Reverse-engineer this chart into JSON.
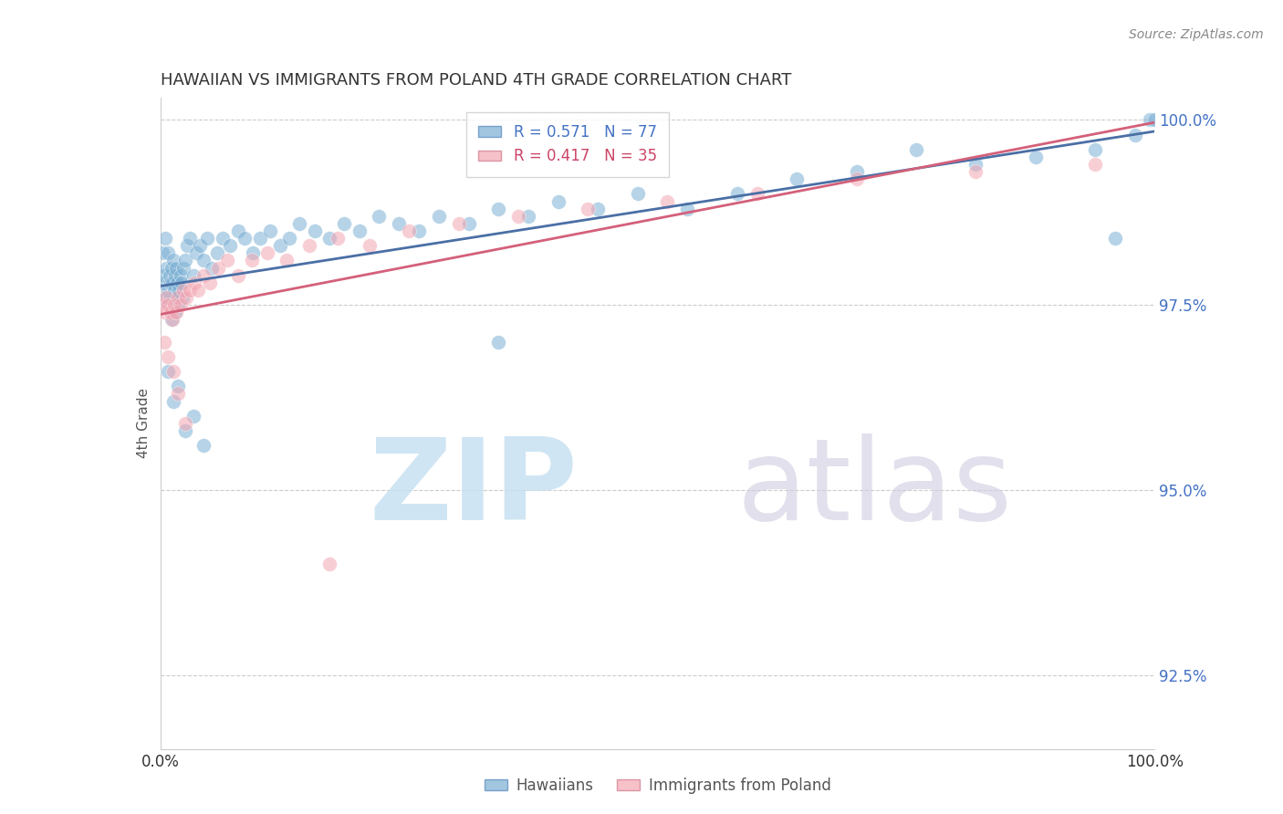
{
  "title": "HAWAIIAN VS IMMIGRANTS FROM POLAND 4TH GRADE CORRELATION CHART",
  "source": "Source: ZipAtlas.com",
  "ylabel": "4th Grade",
  "xlim": [
    0.0,
    1.0
  ],
  "ylim": [
    0.915,
    1.003
  ],
  "yticks": [
    0.925,
    0.95,
    0.975,
    1.0
  ],
  "ytick_labels": [
    "92.5%",
    "95.0%",
    "97.5%",
    "100.0%"
  ],
  "xticks": [
    0.0,
    0.2,
    0.4,
    0.6,
    0.8,
    1.0
  ],
  "xtick_labels": [
    "0.0%",
    "",
    "",
    "",
    "",
    "100.0%"
  ],
  "hawaiians_color": "#7bafd4",
  "poland_color": "#f4a7b3",
  "blue_line_color": "#4a6fa5",
  "pink_line_color": "#d4607a",
  "background_color": "#ffffff",
  "grid_color": "#cccccc",
  "hawaiians_x": [
    0.002,
    0.003,
    0.004,
    0.005,
    0.006,
    0.006,
    0.007,
    0.008,
    0.008,
    0.009,
    0.01,
    0.01,
    0.011,
    0.011,
    0.012,
    0.012,
    0.013,
    0.013,
    0.014,
    0.015,
    0.015,
    0.016,
    0.016,
    0.017,
    0.018,
    0.019,
    0.02,
    0.021,
    0.022,
    0.023,
    0.025,
    0.027,
    0.03,
    0.033,
    0.036,
    0.04,
    0.043,
    0.047,
    0.052,
    0.057,
    0.063,
    0.07,
    0.078,
    0.085,
    0.093,
    0.1,
    0.11,
    0.12,
    0.13,
    0.14,
    0.155,
    0.17,
    0.185,
    0.2,
    0.22,
    0.24,
    0.26,
    0.28,
    0.31,
    0.34,
    0.37,
    0.4,
    0.44,
    0.48,
    0.53,
    0.58,
    0.64,
    0.7,
    0.76,
    0.82,
    0.88,
    0.94,
    0.96,
    0.98,
    0.995,
    1.0
  ],
  "hawaiians_y": [
    0.982,
    0.978,
    0.979,
    0.984,
    0.976,
    0.98,
    0.975,
    0.977,
    0.982,
    0.979,
    0.976,
    0.978,
    0.973,
    0.98,
    0.975,
    0.978,
    0.976,
    0.981,
    0.977,
    0.974,
    0.979,
    0.976,
    0.98,
    0.978,
    0.975,
    0.977,
    0.979,
    0.978,
    0.976,
    0.98,
    0.981,
    0.983,
    0.984,
    0.979,
    0.982,
    0.983,
    0.981,
    0.984,
    0.98,
    0.982,
    0.984,
    0.983,
    0.985,
    0.984,
    0.982,
    0.984,
    0.985,
    0.983,
    0.984,
    0.986,
    0.985,
    0.984,
    0.986,
    0.985,
    0.987,
    0.986,
    0.985,
    0.987,
    0.986,
    0.988,
    0.987,
    0.989,
    0.988,
    0.99,
    0.988,
    0.99,
    0.992,
    0.993,
    0.996,
    0.994,
    0.995,
    0.996,
    0.984,
    0.998,
    1.0,
    1.0
  ],
  "hawaii_outliers_x": [
    0.008,
    0.013,
    0.018,
    0.025,
    0.033,
    0.043,
    0.34
  ],
  "hawaii_outliers_y": [
    0.966,
    0.962,
    0.964,
    0.958,
    0.96,
    0.956,
    0.97
  ],
  "poland_x": [
    0.002,
    0.004,
    0.006,
    0.008,
    0.01,
    0.012,
    0.014,
    0.016,
    0.018,
    0.02,
    0.023,
    0.026,
    0.03,
    0.034,
    0.038,
    0.043,
    0.05,
    0.058,
    0.067,
    0.078,
    0.092,
    0.108,
    0.127,
    0.15,
    0.178,
    0.21,
    0.25,
    0.3,
    0.36,
    0.43,
    0.51,
    0.6,
    0.7,
    0.82,
    0.94
  ],
  "poland_y": [
    0.975,
    0.974,
    0.976,
    0.975,
    0.974,
    0.973,
    0.975,
    0.974,
    0.976,
    0.975,
    0.977,
    0.976,
    0.977,
    0.978,
    0.977,
    0.979,
    0.978,
    0.98,
    0.981,
    0.979,
    0.981,
    0.982,
    0.981,
    0.983,
    0.984,
    0.983,
    0.985,
    0.986,
    0.987,
    0.988,
    0.989,
    0.99,
    0.992,
    0.993,
    0.994
  ],
  "poland_outliers_x": [
    0.004,
    0.008,
    0.013,
    0.018,
    0.025,
    0.17
  ],
  "poland_outliers_y": [
    0.97,
    0.968,
    0.966,
    0.963,
    0.959,
    0.94
  ]
}
